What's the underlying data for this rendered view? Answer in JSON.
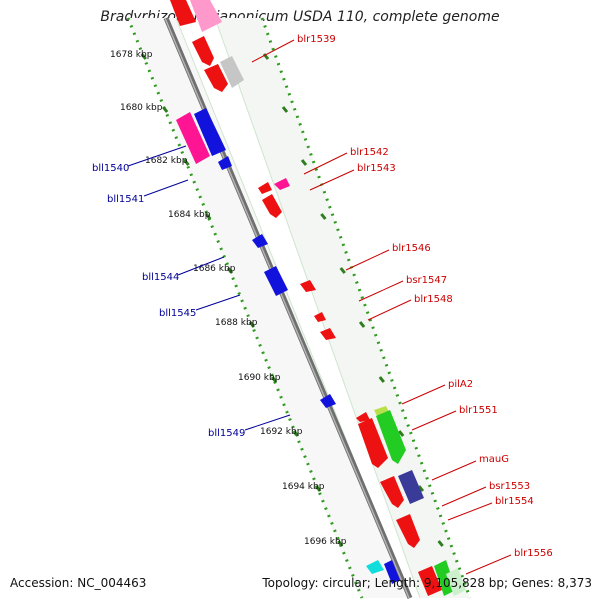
{
  "title": "Bradyrhizobium japonicum USDA 110, complete genome",
  "footer": {
    "accession": "Accession: NC_004463",
    "summary": "Topology: circular; Length: 9,105,828 bp; Genes: 8,373"
  },
  "axis": {
    "ticks": [
      {
        "label": "1678 kbp"
      },
      {
        "label": "1680 kbp"
      },
      {
        "label": "1682 kbp"
      },
      {
        "label": "1684 kbp"
      },
      {
        "label": "1686 kbp"
      },
      {
        "label": "1688 kbp"
      },
      {
        "label": "1690 kbp"
      },
      {
        "label": "1692 kbp"
      },
      {
        "label": "1694 kbp"
      },
      {
        "label": "1696 kbp"
      }
    ]
  },
  "genes": [
    {
      "name": "blr1539",
      "strand": "+",
      "color": "#ff0000"
    },
    {
      "name": "bll1540",
      "strand": "-",
      "color": "#0000ff"
    },
    {
      "name": "bll1541",
      "strand": "-",
      "color": "#0000ff"
    },
    {
      "name": "blr1542",
      "strand": "+",
      "color": "#ff0000"
    },
    {
      "name": "blr1543",
      "strand": "+",
      "color": "#ff0000"
    },
    {
      "name": "bll1544",
      "strand": "-",
      "color": "#0000ff"
    },
    {
      "name": "bll1545",
      "strand": "-",
      "color": "#0000ff"
    },
    {
      "name": "blr1546",
      "strand": "+",
      "color": "#ff0000"
    },
    {
      "name": "bsr1547",
      "strand": "+",
      "color": "#ff0000"
    },
    {
      "name": "blr1548",
      "strand": "+",
      "color": "#ff0000"
    },
    {
      "name": "bll1549",
      "strand": "-",
      "color": "#0000ff"
    },
    {
      "name": "pilA2",
      "strand": "+",
      "color": "#ff0000"
    },
    {
      "name": "blr1551",
      "strand": "+",
      "color": "#ff0000"
    },
    {
      "name": "mauG",
      "strand": "+",
      "color": "#ff0000"
    },
    {
      "name": "bsr1553",
      "strand": "+",
      "color": "#ff0000"
    },
    {
      "name": "blr1554",
      "strand": "+",
      "color": "#ff0000"
    },
    {
      "name": "blr1556",
      "strand": "+",
      "color": "#ff0000"
    }
  ],
  "colors": {
    "plus_label": "#cc0000",
    "minus_label": "#000099",
    "backbone": "#8c8c8c",
    "tick": "#2e7d1e"
  }
}
